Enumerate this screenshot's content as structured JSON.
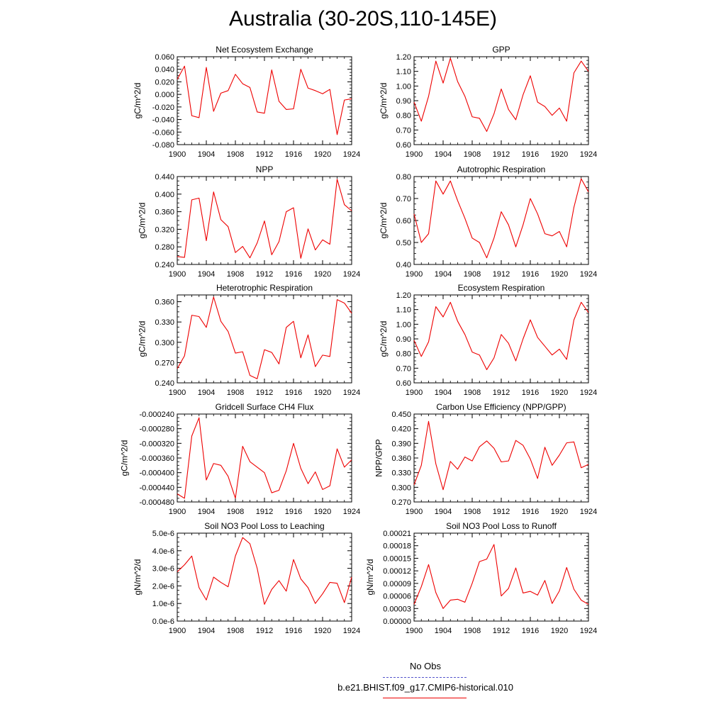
{
  "figure": {
    "title": "Australia (30-20S,110-145E)",
    "line_color": "#ee0000",
    "legend": [
      {
        "label": "No Obs",
        "color": "#5555cc",
        "style": "dashed"
      },
      {
        "label": "b.e21.BHIST.f09_g17.CMIP6-historical.010",
        "color": "#ee0000",
        "style": "solid"
      }
    ]
  },
  "chart_data": [
    {
      "type": "line",
      "title": "Net Ecosystem Exchange",
      "ylabel": "gC/m^2/d",
      "x": [
        1900,
        1901,
        1902,
        1903,
        1904,
        1905,
        1906,
        1907,
        1908,
        1909,
        1910,
        1911,
        1912,
        1913,
        1914,
        1915,
        1916,
        1917,
        1918,
        1919,
        1920,
        1921,
        1922,
        1923,
        1924
      ],
      "values": [
        0.024,
        0.045,
        -0.034,
        -0.037,
        0.043,
        -0.027,
        0.002,
        0.006,
        0.032,
        0.017,
        0.011,
        -0.028,
        -0.03,
        0.039,
        -0.011,
        -0.024,
        -0.023,
        0.04,
        0.01,
        0.006,
        0.001,
        0.008,
        -0.064,
        -0.009,
        -0.007
      ],
      "ylim": [
        -0.08,
        0.06
      ],
      "yticks": [
        "-0.080",
        "-0.060",
        "-0.040",
        "-0.020",
        "0.000",
        "0.020",
        "0.040",
        "0.060"
      ],
      "xlim": [
        1900,
        1924
      ],
      "xticks": [
        "1900",
        "1904",
        "1908",
        "1912",
        "1916",
        "1920",
        "1924"
      ]
    },
    {
      "type": "line",
      "title": "GPP",
      "ylabel": "gC/m^2/d",
      "x": [
        1900,
        1901,
        1902,
        1903,
        1904,
        1905,
        1906,
        1907,
        1908,
        1909,
        1910,
        1911,
        1912,
        1913,
        1914,
        1915,
        1916,
        1917,
        1918,
        1919,
        1920,
        1921,
        1922,
        1923,
        1924
      ],
      "values": [
        0.89,
        0.76,
        0.93,
        1.17,
        1.02,
        1.19,
        1.03,
        0.93,
        0.79,
        0.78,
        0.69,
        0.81,
        0.98,
        0.84,
        0.77,
        0.94,
        1.07,
        0.89,
        0.86,
        0.8,
        0.85,
        0.76,
        1.09,
        1.17,
        1.1
      ],
      "ylim": [
        0.6,
        1.2
      ],
      "yticks": [
        "0.60",
        "0.70",
        "0.80",
        "0.90",
        "1.00",
        "1.10",
        "1.20"
      ],
      "xlim": [
        1900,
        1924
      ],
      "xticks": [
        "1900",
        "1904",
        "1908",
        "1912",
        "1916",
        "1920",
        "1924"
      ]
    },
    {
      "type": "line",
      "title": "NPP",
      "ylabel": "gC/m^2/d",
      "x": [
        1900,
        1901,
        1902,
        1903,
        1904,
        1905,
        1906,
        1907,
        1908,
        1909,
        1910,
        1911,
        1912,
        1913,
        1914,
        1915,
        1916,
        1917,
        1918,
        1919,
        1920,
        1921,
        1922,
        1923,
        1924
      ],
      "values": [
        0.258,
        0.256,
        0.387,
        0.391,
        0.294,
        0.405,
        0.342,
        0.326,
        0.267,
        0.281,
        0.255,
        0.289,
        0.339,
        0.262,
        0.292,
        0.36,
        0.369,
        0.254,
        0.321,
        0.273,
        0.296,
        0.286,
        0.434,
        0.376,
        0.362
      ],
      "ylim": [
        0.24,
        0.44
      ],
      "yticks": [
        "0.240",
        "0.280",
        "0.320",
        "0.360",
        "0.400",
        "0.440"
      ],
      "xlim": [
        1900,
        1924
      ],
      "xticks": [
        "1900",
        "1904",
        "1908",
        "1912",
        "1916",
        "1920",
        "1924"
      ]
    },
    {
      "type": "line",
      "title": "Autotrophic Respiration",
      "ylabel": "gC/m^2/d",
      "x": [
        1900,
        1901,
        1902,
        1903,
        1904,
        1905,
        1906,
        1907,
        1908,
        1909,
        1910,
        1911,
        1912,
        1913,
        1914,
        1915,
        1916,
        1917,
        1918,
        1919,
        1920,
        1921,
        1922,
        1923,
        1924
      ],
      "values": [
        0.63,
        0.5,
        0.54,
        0.78,
        0.72,
        0.78,
        0.69,
        0.61,
        0.52,
        0.5,
        0.43,
        0.52,
        0.64,
        0.58,
        0.48,
        0.58,
        0.7,
        0.63,
        0.54,
        0.53,
        0.55,
        0.48,
        0.66,
        0.79,
        0.73
      ],
      "ylim": [
        0.4,
        0.8
      ],
      "yticks": [
        "0.40",
        "0.50",
        "0.60",
        "0.70",
        "0.80"
      ],
      "xlim": [
        1900,
        1924
      ],
      "xticks": [
        "1900",
        "1904",
        "1908",
        "1912",
        "1916",
        "1920",
        "1924"
      ]
    },
    {
      "type": "line",
      "title": "Heterotrophic Respiration",
      "ylabel": "gC/m^2/d",
      "x": [
        1900,
        1901,
        1902,
        1903,
        1904,
        1905,
        1906,
        1907,
        1908,
        1909,
        1910,
        1911,
        1912,
        1913,
        1914,
        1915,
        1916,
        1917,
        1918,
        1919,
        1920,
        1921,
        1922,
        1923,
        1924
      ],
      "values": [
        0.261,
        0.28,
        0.34,
        0.338,
        0.322,
        0.367,
        0.331,
        0.316,
        0.284,
        0.286,
        0.251,
        0.246,
        0.289,
        0.285,
        0.268,
        0.322,
        0.331,
        0.277,
        0.311,
        0.264,
        0.281,
        0.279,
        0.363,
        0.358,
        0.343
      ],
      "ylim": [
        0.24,
        0.37
      ],
      "yticks": [
        "0.240",
        "0.270",
        "0.300",
        "0.330",
        "0.360"
      ],
      "xlim": [
        1900,
        1924
      ],
      "xticks": [
        "1900",
        "1904",
        "1908",
        "1912",
        "1916",
        "1920",
        "1924"
      ]
    },
    {
      "type": "line",
      "title": "Ecosystem Respiration",
      "ylabel": "gC/m^2/d",
      "x": [
        1900,
        1901,
        1902,
        1903,
        1904,
        1905,
        1906,
        1907,
        1908,
        1909,
        1910,
        1911,
        1912,
        1913,
        1914,
        1915,
        1916,
        1917,
        1918,
        1919,
        1920,
        1921,
        1922,
        1923,
        1924
      ],
      "values": [
        0.89,
        0.78,
        0.88,
        1.12,
        1.05,
        1.15,
        1.02,
        0.93,
        0.81,
        0.79,
        0.69,
        0.77,
        0.93,
        0.87,
        0.75,
        0.9,
        1.03,
        0.91,
        0.85,
        0.79,
        0.83,
        0.76,
        1.03,
        1.15,
        1.08
      ],
      "ylim": [
        0.6,
        1.2
      ],
      "yticks": [
        "0.60",
        "0.70",
        "0.80",
        "0.90",
        "1.00",
        "1.10",
        "1.20"
      ],
      "xlim": [
        1900,
        1924
      ],
      "xticks": [
        "1900",
        "1904",
        "1908",
        "1912",
        "1916",
        "1920",
        "1924"
      ]
    },
    {
      "type": "line",
      "title": "Gridcell Surface CH4 Flux",
      "ylabel": "gC/m^2/d",
      "x": [
        1900,
        1901,
        1902,
        1903,
        1904,
        1905,
        1906,
        1907,
        1908,
        1909,
        1910,
        1911,
        1912,
        1913,
        1914,
        1915,
        1916,
        1917,
        1918,
        1919,
        1920,
        1921,
        1922,
        1923,
        1924
      ],
      "values": [
        -0.000458,
        -0.00047,
        -0.0003,
        -0.00025,
        -0.00042,
        -0.000375,
        -0.00038,
        -0.00041,
        -0.00047,
        -0.000328,
        -0.00037,
        -0.000385,
        -0.0004,
        -0.000455,
        -0.000448,
        -0.000395,
        -0.00032,
        -0.000388,
        -0.00043,
        -0.000398,
        -0.000446,
        -0.000436,
        -0.000335,
        -0.000385,
        -0.000365
      ],
      "ylim": [
        -0.00048,
        -0.00024
      ],
      "yticks": [
        "-0.000480",
        "-0.000440",
        "-0.000400",
        "-0.000360",
        "-0.000320",
        "-0.000280",
        "-0.000240"
      ],
      "xlim": [
        1900,
        1924
      ],
      "xticks": [
        "1900",
        "1904",
        "1908",
        "1912",
        "1916",
        "1920",
        "1924"
      ]
    },
    {
      "type": "line",
      "title": "Carbon Use Efficiency (NPP/GPP)",
      "ylabel": "NPP/GPP",
      "x": [
        1900,
        1901,
        1902,
        1903,
        1904,
        1905,
        1906,
        1907,
        1908,
        1909,
        1910,
        1911,
        1912,
        1913,
        1914,
        1915,
        1916,
        1917,
        1918,
        1919,
        1920,
        1921,
        1922,
        1923,
        1924
      ],
      "values": [
        0.305,
        0.345,
        0.435,
        0.348,
        0.295,
        0.353,
        0.337,
        0.362,
        0.354,
        0.383,
        0.395,
        0.38,
        0.352,
        0.354,
        0.396,
        0.386,
        0.358,
        0.318,
        0.382,
        0.345,
        0.366,
        0.391,
        0.393,
        0.34,
        0.347
      ],
      "ylim": [
        0.27,
        0.45
      ],
      "yticks": [
        "0.270",
        "0.300",
        "0.330",
        "0.360",
        "0.390",
        "0.420",
        "0.450"
      ],
      "xlim": [
        1900,
        1924
      ],
      "xticks": [
        "1900",
        "1904",
        "1908",
        "1912",
        "1916",
        "1920",
        "1924"
      ]
    },
    {
      "type": "line",
      "title": "Soil NO3 Pool Loss to Leaching",
      "ylabel": "gN/m^2/d",
      "x": [
        1900,
        1901,
        1902,
        1903,
        1904,
        1905,
        1906,
        1907,
        1908,
        1909,
        1910,
        1911,
        1912,
        1913,
        1914,
        1915,
        1916,
        1917,
        1918,
        1919,
        1920,
        1921,
        1922,
        1923,
        1924
      ],
      "values": [
        2.8e-06,
        3.2e-06,
        3.7e-06,
        1.9e-06,
        1.2e-06,
        2.5e-06,
        2.2e-06,
        1.95e-06,
        3.7e-06,
        4.75e-06,
        4.4e-06,
        3e-06,
        9.5e-07,
        1.8e-06,
        2.3e-06,
        1.7e-06,
        3.5e-06,
        2.4e-06,
        1.9e-06,
        1e-06,
        1.55e-06,
        2.2e-06,
        2.15e-06,
        1.05e-06,
        2.5e-06
      ],
      "ylim": [
        0,
        5e-06
      ],
      "yticks": [
        "0.0e-6",
        "1.0e-6",
        "2.0e-6",
        "3.0e-6",
        "4.0e-6",
        "5.0e-6"
      ],
      "xlim": [
        1900,
        1924
      ],
      "xticks": [
        "1900",
        "1904",
        "1908",
        "1912",
        "1916",
        "1920",
        "1924"
      ]
    },
    {
      "type": "line",
      "title": "Soil NO3 Pool Loss to Runoff",
      "ylabel": "gN/m^2/d",
      "x": [
        1900,
        1901,
        1902,
        1903,
        1904,
        1905,
        1906,
        1907,
        1908,
        1909,
        1910,
        1911,
        1912,
        1913,
        1914,
        1915,
        1916,
        1917,
        1918,
        1919,
        1920,
        1921,
        1922,
        1923,
        1924
      ],
      "values": [
        4e-05,
        8.2e-05,
        0.000135,
        6.8e-05,
        3e-05,
        5e-05,
        5.2e-05,
        4.5e-05,
        9e-05,
        0.000142,
        0.000148,
        0.000183,
        6e-05,
        7.8e-05,
        0.000127,
        6.7e-05,
        7.1e-05,
        6.2e-05,
        9.7e-05,
        4.2e-05,
        7.2e-05,
        0.000128,
        7.6e-05,
        5e-05,
        4e-05
      ],
      "ylim": [
        0,
        0.00021
      ],
      "yticks": [
        "0.00000",
        "0.00003",
        "0.00006",
        "0.00009",
        "0.00012",
        "0.00015",
        "0.00018",
        "0.00021"
      ],
      "xlim": [
        1900,
        1924
      ],
      "xticks": [
        "1900",
        "1904",
        "1908",
        "1912",
        "1916",
        "1920",
        "1924"
      ]
    }
  ]
}
